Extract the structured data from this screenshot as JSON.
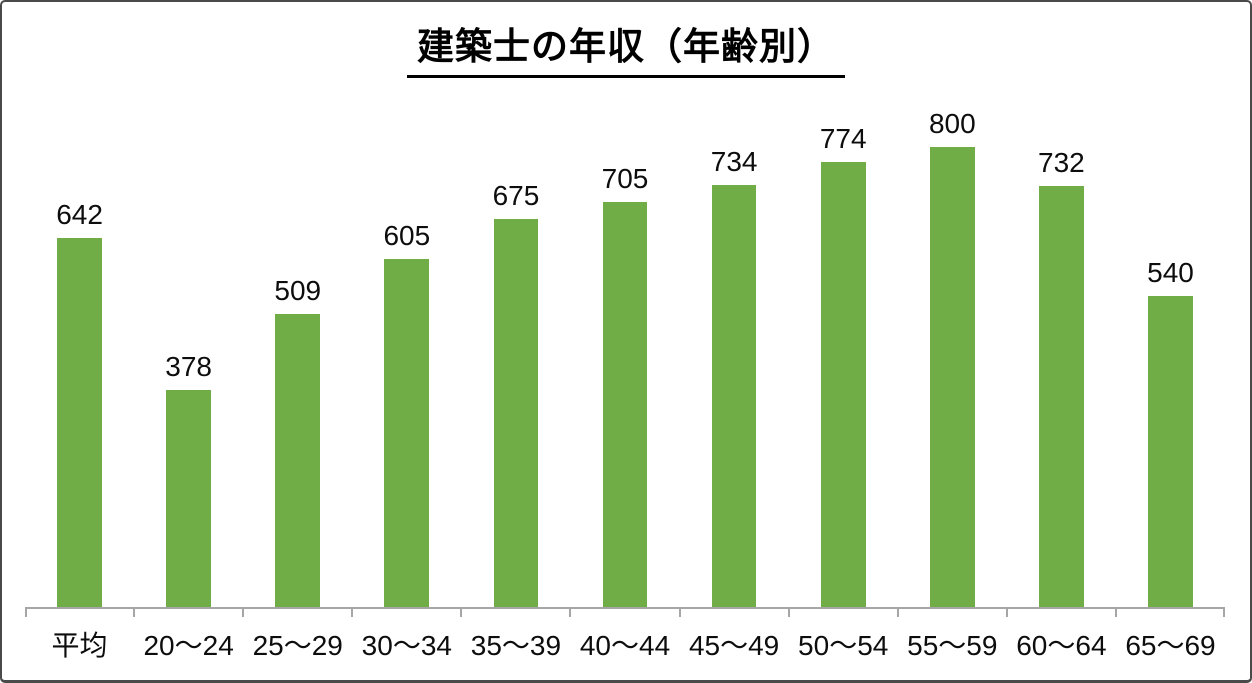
{
  "title": "建築士の年収（年齢別）",
  "chart_data": {
    "type": "bar",
    "title": "建築士の年収（年齢別）",
    "categories": [
      "平均",
      "20〜24",
      "25〜29",
      "30〜34",
      "35〜39",
      "40〜44",
      "45〜49",
      "50〜54",
      "55〜59",
      "60〜64",
      "65〜69"
    ],
    "values": [
      642,
      378,
      509,
      605,
      675,
      705,
      734,
      774,
      800,
      732,
      540
    ],
    "xlabel": "",
    "ylabel": "",
    "ylim": [
      0,
      900
    ],
    "grid": false,
    "legend": false,
    "data_labels": true,
    "bar_color": "#70AD47",
    "axis_color": "#A6A6A6",
    "text_color": "#0d0d0d",
    "background_color": "#FFFFFF"
  }
}
